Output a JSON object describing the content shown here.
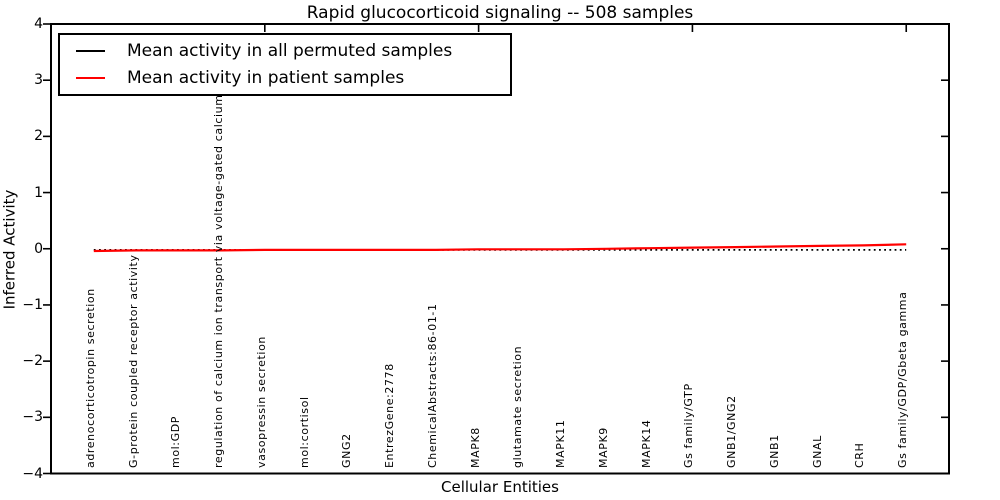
{
  "figure": {
    "background": "#ffffff",
    "frame_color": "#000000"
  },
  "chart_data": {
    "type": "line",
    "title": "Rapid glucocorticoid signaling -- 508 samples",
    "xlabel": "Cellular Entities",
    "ylabel": "Inferred Activity",
    "ylim": [
      -4,
      4
    ],
    "xlim": [
      0,
      21
    ],
    "grid": false,
    "legend_position": "upper left",
    "yticks": [
      4,
      3,
      2,
      1,
      0,
      -1,
      -2,
      -3,
      -4
    ],
    "top_axis_ticks_x": [
      5,
      10,
      15,
      20
    ],
    "categories": [
      "adrenocorticotropin secretion",
      "G-protein coupled receptor activity",
      "mol:GDP",
      "regulation of calcium ion transport via voltage-gated calcium channels",
      "vasopressin secretion",
      "mol:cortisol",
      "GNG2",
      "EntrezGene:2778",
      "ChemicalAbstracts:86-01-1",
      "MAPK8",
      "glutamate secretion",
      "MAPK11",
      "MAPK9",
      "MAPK14",
      "Gs family/GTP",
      "GNB1/GNG2",
      "GNB1",
      "GNAL",
      "CRH",
      "Gs family/GDP/Gbeta gamma"
    ],
    "series": [
      {
        "name": "Mean activity in all permuted samples",
        "color": "#000000",
        "linestyle": "dotted",
        "values": [
          -0.02,
          -0.02,
          -0.02,
          -0.02,
          -0.02,
          -0.02,
          -0.02,
          -0.02,
          -0.02,
          -0.02,
          -0.02,
          -0.02,
          -0.02,
          -0.02,
          -0.02,
          -0.02,
          -0.02,
          -0.02,
          -0.02,
          -0.02
        ]
      },
      {
        "name": "Mean activity in patient samples",
        "color": "#ff0000",
        "linestyle": "solid",
        "values": [
          -0.04,
          -0.03,
          -0.03,
          -0.03,
          -0.02,
          -0.02,
          -0.02,
          -0.02,
          -0.02,
          -0.01,
          -0.01,
          -0.01,
          0.0,
          0.01,
          0.02,
          0.03,
          0.04,
          0.05,
          0.06,
          0.08
        ]
      }
    ]
  }
}
